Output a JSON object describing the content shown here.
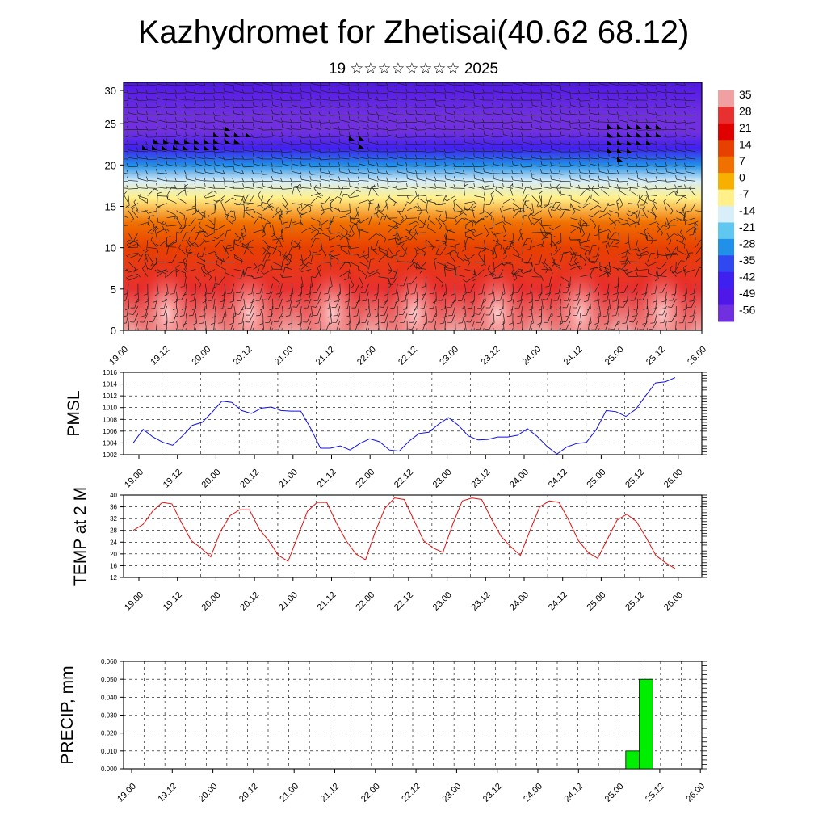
{
  "title": "Kazhydromet for Zhetisai(40.62 68.12)",
  "subtitle": "19 ☆☆☆☆☆☆☆☆ 2025",
  "time_labels": [
    "19.00",
    "19.12",
    "20.00",
    "20.12",
    "21.00",
    "21.12",
    "22.00",
    "22.12",
    "23.00",
    "23.12",
    "24.00",
    "24.12",
    "25.00",
    "25.12",
    "26.00"
  ],
  "chart_data": [
    {
      "type": "heatmap",
      "ylim": [
        0,
        30
      ],
      "yticks": [
        "0",
        "5",
        "10",
        "15",
        "20",
        "25",
        "30"
      ],
      "colorbar": {
        "labels": [
          "35",
          "28",
          "21",
          "14",
          "7",
          "0",
          "-7",
          "-14",
          "-21",
          "-28",
          "-35",
          "-42",
          "-49",
          "-56"
        ],
        "colors": [
          "#f0a0a0",
          "#e83030",
          "#e00000",
          "#e84000",
          "#f07000",
          "#f8b000",
          "#fff08a",
          "#d8eef8",
          "#60c8f0",
          "#2090e8",
          "#3048f0",
          "#4020f0",
          "#5018e8",
          "#7030e0"
        ]
      },
      "color_by_height": [
        {
          "height": 0,
          "value": 33
        },
        {
          "height": 5,
          "value": 25
        },
        {
          "height": 10,
          "value": 16
        },
        {
          "height": 13,
          "value": 8
        },
        {
          "height": 16,
          "value": -4
        },
        {
          "height": 18,
          "value": -15
        },
        {
          "height": 20,
          "value": -30
        },
        {
          "height": 22,
          "value": -45
        },
        {
          "height": 24,
          "value": -58
        },
        {
          "height": 26,
          "value": -56
        },
        {
          "height": 30,
          "value": -52
        }
      ]
    },
    {
      "type": "line",
      "ylabel": "PMSL",
      "ylim": [
        1002,
        1016
      ],
      "yticks": [
        "1002",
        "1004",
        "1006",
        "1008",
        "1010",
        "1012",
        "1014",
        "1016"
      ],
      "color": "#1010e0",
      "values": [
        1004.0,
        1006.3,
        1005.0,
        1004.1,
        1003.6,
        1005.2,
        1007.0,
        1007.5,
        1009.2,
        1011.1,
        1010.9,
        1009.5,
        1009.0,
        1009.9,
        1010.1,
        1009.5,
        1009.4,
        1009.4,
        1006.5,
        1003.1,
        1003.1,
        1003.5,
        1002.8,
        1003.9,
        1004.7,
        1004.2,
        1002.8,
        1002.6,
        1004.3,
        1005.6,
        1005.8,
        1007.2,
        1008.3,
        1007.0,
        1005.2,
        1004.5,
        1004.6,
        1005.0,
        1005.0,
        1005.3,
        1006.4,
        1005.1,
        1003.4,
        1002.1,
        1003.3,
        1003.9,
        1004.1,
        1006.3,
        1009.5,
        1009.3,
        1008.5,
        1009.7,
        1012.0,
        1014.2,
        1014.4,
        1015.1
      ]
    },
    {
      "type": "line",
      "ylabel": "TEMP at 2 M",
      "ylim": [
        12,
        40
      ],
      "yticks": [
        "12",
        "16",
        "20",
        "24",
        "28",
        "32",
        "36",
        "40"
      ],
      "color": "#e01010",
      "values": [
        28,
        30,
        34.5,
        37.5,
        37,
        30.5,
        24.5,
        22,
        19,
        27.5,
        33,
        35,
        35,
        28.5,
        24.5,
        19.5,
        17.5,
        26,
        34.5,
        37.5,
        37.5,
        30.5,
        24.5,
        20,
        18,
        27.5,
        35.5,
        39,
        38.5,
        31.5,
        24.5,
        22,
        20.5,
        30,
        38,
        39,
        38.5,
        32,
        26,
        22.5,
        19.5,
        28,
        36,
        38,
        37.5,
        31.5,
        24.5,
        20.5,
        18.5,
        25,
        31.5,
        33.5,
        31,
        25.5,
        19.5,
        17,
        15
      ]
    },
    {
      "type": "bar",
      "ylabel": "PRECIP, mm",
      "ylim": [
        0,
        0.06
      ],
      "yticks": [
        "0.000",
        "0.010",
        "0.020",
        "0.030",
        "0.040",
        "0.050",
        "0.060"
      ],
      "color": "#00ee00",
      "bars": [
        {
          "x_from": 73,
          "x_to": 75,
          "value": 0.01
        },
        {
          "x_from": 75,
          "x_to": 77,
          "value": 0.05
        }
      ],
      "x_range": [
        0,
        84
      ]
    }
  ]
}
